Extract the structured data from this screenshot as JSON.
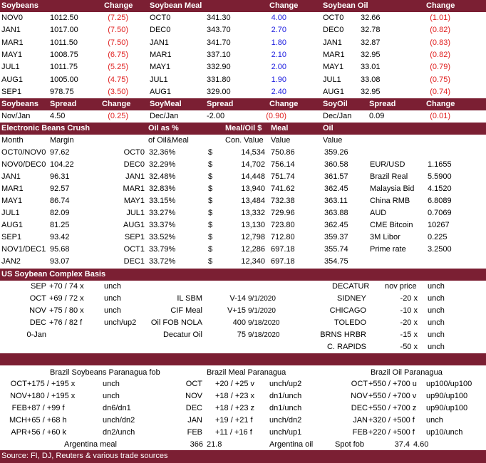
{
  "top": {
    "headers": [
      "Soybeans",
      "Change",
      "Soybean Meal",
      "Change",
      "Soybean Oil",
      "Change"
    ],
    "rows": [
      [
        "NOV0",
        "1012.50",
        "(7.25)",
        "OCT0",
        "341.30",
        "4.00",
        "OCT0",
        "32.66",
        "(1.01)"
      ],
      [
        "JAN1",
        "1017.00",
        "(7.50)",
        "DEC0",
        "343.70",
        "2.70",
        "DEC0",
        "32.78",
        "(0.82)"
      ],
      [
        "MAR1",
        "1011.50",
        "(7.50)",
        "JAN1",
        "341.70",
        "1.80",
        "JAN1",
        "32.87",
        "(0.83)"
      ],
      [
        "MAY1",
        "1008.75",
        "(6.75)",
        "MAR1",
        "337.10",
        "2.10",
        "MAR1",
        "32.95",
        "(0.82)"
      ],
      [
        "JUL1",
        "1011.75",
        "(5.25)",
        "MAY1",
        "332.90",
        "2.00",
        "MAY1",
        "33.01",
        "(0.79)"
      ],
      [
        "AUG1",
        "1005.00",
        "(4.75)",
        "JUL1",
        "331.80",
        "1.90",
        "JUL1",
        "33.08",
        "(0.75)"
      ],
      [
        "SEP1",
        "978.75",
        "(3.50)",
        "AUG1",
        "329.00",
        "2.40",
        "AUG1",
        "32.95",
        "(0.74)"
      ]
    ]
  },
  "spread": {
    "headers": [
      "Soybeans",
      "Spread",
      "Change",
      "SoyMeal",
      "Spread",
      "Change",
      "SoyOil",
      "Spread",
      "Change"
    ],
    "row": [
      "Nov/Jan",
      "4.50",
      "(0.25)",
      "Dec/Jan",
      "-2.00",
      "(0.90)",
      "Dec/Jan",
      "0.09",
      "(0.01)"
    ]
  },
  "crush": {
    "title": "Electronic Beans Crush",
    "h1": [
      "Oil as %",
      "Meal/Oil $",
      "Meal",
      "Oil"
    ],
    "h2": [
      "Month",
      "Margin",
      "of Oil&Meal",
      "Con. Value",
      "Value",
      "Value"
    ],
    "rows": [
      [
        "OCT0/NOV0",
        "97.62",
        "OCT0",
        "32.36%",
        "$",
        "14,534",
        "750.86",
        "359.26"
      ],
      [
        "NOV0/DEC0",
        "104.22",
        "DEC0",
        "32.29%",
        "$",
        "14,702",
        "756.14",
        "360.58"
      ],
      [
        "JAN1",
        "96.31",
        "JAN1",
        "32.48%",
        "$",
        "14,448",
        "751.74",
        "361.57"
      ],
      [
        "MAR1",
        "92.57",
        "MAR1",
        "32.83%",
        "$",
        "13,940",
        "741.62",
        "362.45"
      ],
      [
        "MAY1",
        "86.74",
        "MAY1",
        "33.15%",
        "$",
        "13,484",
        "732.38",
        "363.11"
      ],
      [
        "JUL1",
        "82.09",
        "JUL1",
        "33.27%",
        "$",
        "13,332",
        "729.96",
        "363.88"
      ],
      [
        "AUG1",
        "81.25",
        "AUG1",
        "33.37%",
        "$",
        "13,130",
        "723.80",
        "362.45"
      ],
      [
        "SEP1",
        "93.42",
        "SEP1",
        "33.52%",
        "$",
        "12,798",
        "712.80",
        "359.37"
      ],
      [
        "NOV1/DEC1",
        "95.68",
        "OCT1",
        "33.79%",
        "$",
        "12,286",
        "697.18",
        "355.74"
      ],
      [
        "JAN2",
        "93.07",
        "DEC1",
        "33.72%",
        "$",
        "12,340",
        "697.18",
        "354.75"
      ]
    ],
    "fx": [
      [
        "EUR/USD",
        "1.1655"
      ],
      [
        "Brazil Real",
        "5.5900"
      ],
      [
        "Malaysia Bid",
        "4.1520"
      ],
      [
        "China RMB",
        "6.8089"
      ],
      [
        "AUD",
        "0.7069"
      ],
      [
        "CME Bitcoin",
        "10267"
      ],
      [
        "3M Libor",
        "0.225"
      ],
      [
        "Prime rate",
        "3.2500"
      ]
    ]
  },
  "basis": {
    "title": "US Soybean Complex Basis",
    "left": [
      [
        "SEP",
        "+70 / 74 x",
        "unch"
      ],
      [
        "OCT",
        "+69 / 72 x",
        "unch"
      ],
      [
        "NOV",
        "+75 / 80 x",
        "unch"
      ],
      [
        "DEC",
        "+76 / 82 f",
        "unch/up2"
      ],
      [
        "0-Jan",
        "",
        ""
      ]
    ],
    "mid": [
      [
        "IL SBM",
        "V-14",
        "9/1/2020"
      ],
      [
        "CIF Meal",
        "V+15",
        "9/1/2020"
      ],
      [
        "Oil FOB NOLA",
        "400",
        "9/18/2020"
      ],
      [
        "Decatur Oil",
        "75",
        "9/18/2020"
      ]
    ],
    "right_header": [
      "DECATUR",
      "nov price",
      "unch"
    ],
    "right": [
      [
        "SIDNEY",
        "-20 x",
        "unch"
      ],
      [
        "CHICAGO",
        "-10 x",
        "unch"
      ],
      [
        "TOLEDO",
        "-20 x",
        "unch"
      ],
      [
        "BRNS HRBR",
        "-15 x",
        "unch"
      ],
      [
        "C. RAPIDS",
        "-50 x",
        "unch"
      ]
    ]
  },
  "brazil": {
    "titles": [
      "Brazil Soybeans Paranagua fob",
      "Brazil Meal Paranagua",
      "Brazil Oil Paranagua"
    ],
    "soy": [
      [
        "OCT",
        "+175 / +195 x",
        "unch"
      ],
      [
        "NOV",
        "+180 / +195 x",
        "unch"
      ],
      [
        "FEB",
        "+87 / +99 f",
        "dn6/dn1"
      ],
      [
        "MCH",
        "+65 / +68 h",
        "unch/dn2"
      ],
      [
        "APR",
        "+56 / +60 k",
        "dn2/unch"
      ]
    ],
    "meal": [
      [
        "OCT",
        "+20 / +25 v",
        "unch/up2"
      ],
      [
        "NOV",
        "+18 / +23 x",
        "dn1/unch"
      ],
      [
        "DEC",
        "+18 / +23 z",
        "dn1/unch"
      ],
      [
        "JAN",
        "+19 / +21 f",
        "unch/dn2"
      ],
      [
        "FEB",
        "+11 / +16 f",
        "unch/up1"
      ]
    ],
    "oil": [
      [
        "OCT",
        "+550 / +700 u",
        "up100/up100"
      ],
      [
        "NOV",
        "+550 / +700 v",
        "up90/up100"
      ],
      [
        "DEC",
        "+550 / +700 z",
        "up90/up100"
      ],
      [
        "JAN",
        "+320 / +500 f",
        "unch"
      ],
      [
        "FEB",
        "+220 / +500 f",
        "up10/unch"
      ]
    ],
    "argentina_meal": [
      "Argentina meal",
      "366",
      "21.8"
    ],
    "argentina_oil": [
      "Argentina oil",
      "Spot fob",
      "37.4",
      "4.60"
    ]
  },
  "source": "Source: FI, DJ, Reuters & various trade sources",
  "colors": {
    "header_bg": "#7b1f33",
    "negative": "#e02020",
    "positive": "#2020e0"
  }
}
